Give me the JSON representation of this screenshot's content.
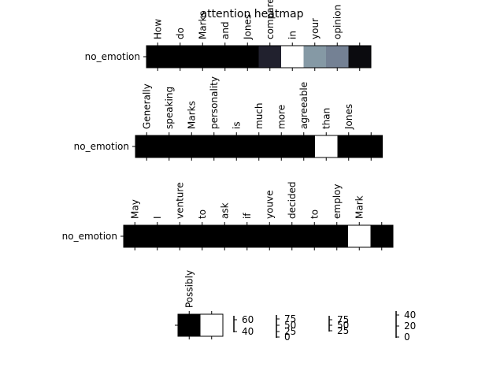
{
  "chart_data": {
    "type": "heatmap",
    "title": "attention heatmap",
    "colormap": "bone",
    "rows": [
      {
        "row_label": "no_emotion",
        "tokens": [
          "How",
          "do",
          "Marks",
          "and",
          "Jones",
          "compare",
          "in",
          "your",
          "opinion",
          ""
        ],
        "values": [
          0,
          0,
          0,
          0,
          0,
          0.15,
          1.0,
          0.6,
          0.52,
          0.05
        ]
      },
      {
        "row_label": "no_emotion",
        "tokens": [
          "Generally",
          "speaking",
          "Marks",
          "personality",
          "is",
          "much",
          "more",
          "agreeable",
          "than",
          "Jones",
          ""
        ],
        "values": [
          0,
          0,
          0,
          0,
          0,
          0,
          0,
          0,
          1.0,
          0,
          0
        ]
      },
      {
        "row_label": "no_emotion",
        "tokens": [
          "May",
          "I",
          "venture",
          "to",
          "ask",
          "if",
          "youve",
          "decided",
          "to",
          "employ",
          "Mark",
          ""
        ],
        "values": [
          0,
          0,
          0,
          0,
          0,
          0,
          0,
          0,
          0,
          0,
          1.0,
          0
        ]
      },
      {
        "row_label": "",
        "tokens": [
          "Possibly",
          ""
        ],
        "values": [
          0,
          1.0
        ]
      }
    ],
    "colorbars": [
      {
        "ticks": [
          "60",
          "40"
        ]
      },
      {
        "ticks": [
          "75",
          "50",
          "25",
          "0"
        ]
      },
      {
        "ticks": [
          "75",
          "50",
          "25"
        ]
      },
      {
        "ticks": [
          "40",
          "20",
          "0"
        ]
      }
    ]
  }
}
